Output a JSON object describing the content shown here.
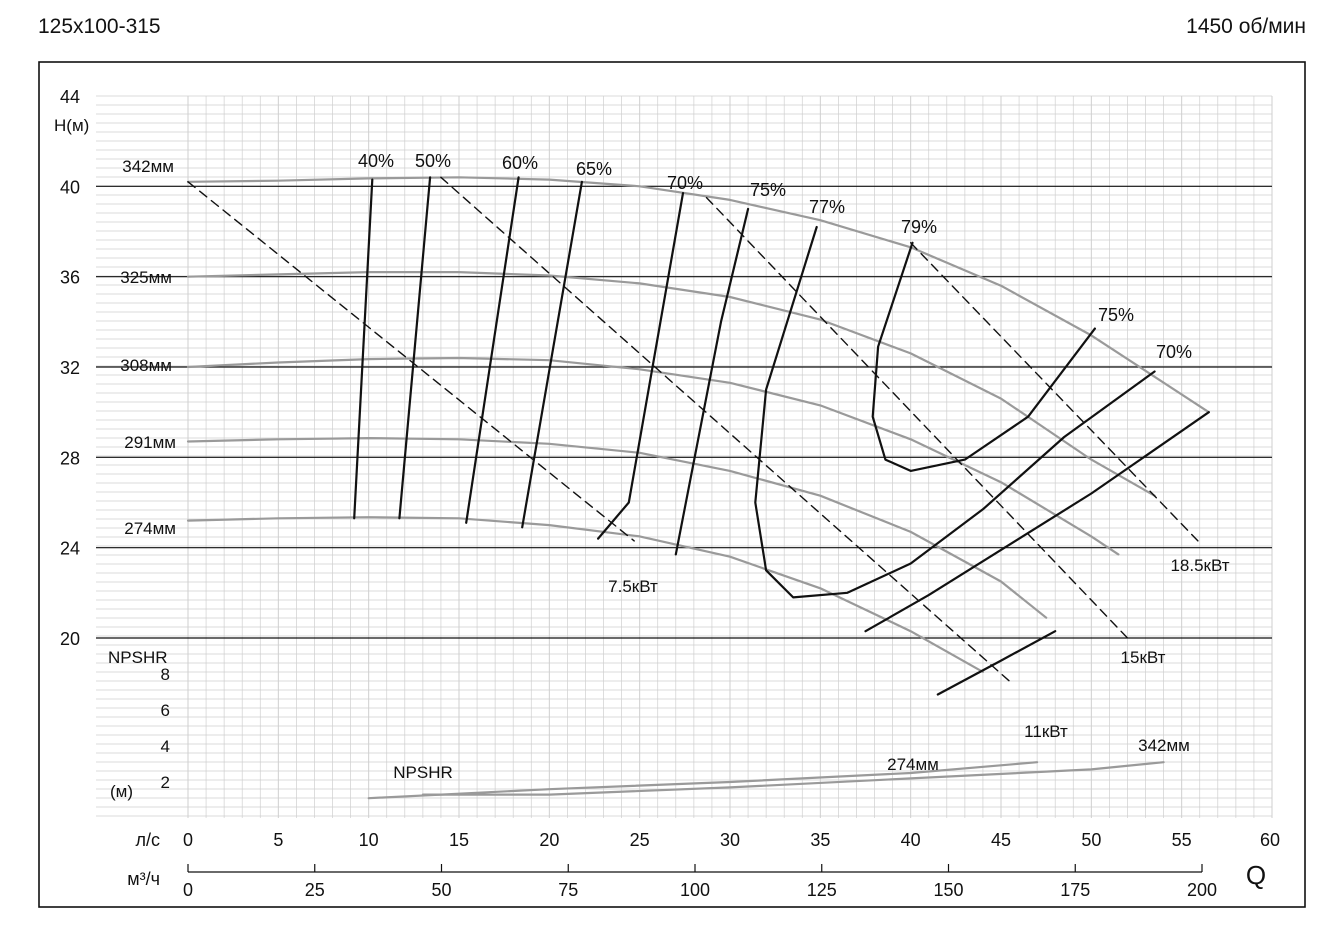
{
  "header": {
    "model": "125x100-315",
    "speed": "1450 об/мин"
  },
  "chart_data": {
    "type": "line",
    "x_unit_ls": "л/с",
    "x_unit_m3h": "м³/ч",
    "q_symbol": "Q",
    "ls_ticks": [
      0,
      5,
      10,
      15,
      20,
      25,
      30,
      35,
      40,
      45,
      50,
      55,
      60
    ],
    "m3h_ticks": [
      0,
      25,
      50,
      75,
      100,
      125,
      150,
      175,
      200
    ],
    "ylabel_head": "H(м)",
    "head_ticks": [
      20,
      24,
      28,
      32,
      36,
      40,
      44
    ],
    "head_range": [
      20,
      44
    ],
    "npshr_label": "NPSHR",
    "npshr_unit": "(м)",
    "npshr_ticks": [
      2,
      4,
      6,
      8
    ],
    "npshr_range": [
      0,
      10
    ],
    "head_curves": [
      {
        "name": "342мм",
        "points": [
          [
            0,
            40.2
          ],
          [
            5,
            40.25
          ],
          [
            10,
            40.35
          ],
          [
            15,
            40.4
          ],
          [
            20,
            40.3
          ],
          [
            25,
            40.0
          ],
          [
            30,
            39.4
          ],
          [
            35,
            38.5
          ],
          [
            40,
            37.3
          ],
          [
            45,
            35.6
          ],
          [
            50,
            33.4
          ],
          [
            56.5,
            30.0
          ]
        ]
      },
      {
        "name": "325мм",
        "points": [
          [
            0,
            36.0
          ],
          [
            5,
            36.1
          ],
          [
            10,
            36.2
          ],
          [
            15,
            36.2
          ],
          [
            20,
            36.05
          ],
          [
            25,
            35.7
          ],
          [
            30,
            35.1
          ],
          [
            35,
            34.1
          ],
          [
            40,
            32.6
          ],
          [
            45,
            30.6
          ],
          [
            50,
            27.9
          ],
          [
            53.5,
            26.3
          ]
        ]
      },
      {
        "name": "308мм",
        "points": [
          [
            0,
            32.0
          ],
          [
            5,
            32.2
          ],
          [
            10,
            32.35
          ],
          [
            15,
            32.4
          ],
          [
            20,
            32.3
          ],
          [
            25,
            31.9
          ],
          [
            30,
            31.3
          ],
          [
            35,
            30.3
          ],
          [
            40,
            28.8
          ],
          [
            45,
            26.9
          ],
          [
            50,
            24.5
          ],
          [
            51.5,
            23.7
          ]
        ]
      },
      {
        "name": "291мм",
        "points": [
          [
            0,
            28.7
          ],
          [
            5,
            28.8
          ],
          [
            10,
            28.85
          ],
          [
            15,
            28.8
          ],
          [
            20,
            28.6
          ],
          [
            25,
            28.2
          ],
          [
            30,
            27.4
          ],
          [
            35,
            26.3
          ],
          [
            40,
            24.7
          ],
          [
            45,
            22.5
          ],
          [
            47.5,
            20.9
          ]
        ]
      },
      {
        "name": "274мм",
        "points": [
          [
            0,
            25.2
          ],
          [
            5,
            25.3
          ],
          [
            10,
            25.35
          ],
          [
            15,
            25.3
          ],
          [
            20,
            25.0
          ],
          [
            25,
            24.5
          ],
          [
            30,
            23.6
          ],
          [
            35,
            22.2
          ],
          [
            40,
            20.3
          ],
          [
            44,
            18.5
          ]
        ]
      }
    ],
    "efficiency_lines": [
      {
        "name": "40%",
        "points": [
          [
            10.2,
            40.3
          ],
          [
            9.2,
            25.3
          ]
        ]
      },
      {
        "name": "50%",
        "points": [
          [
            13.4,
            40.4
          ],
          [
            11.7,
            25.3
          ]
        ]
      },
      {
        "name": "60%",
        "points": [
          [
            18.3,
            40.4
          ],
          [
            15.4,
            25.1
          ]
        ]
      },
      {
        "name": "65%",
        "points": [
          [
            21.8,
            40.2
          ],
          [
            18.5,
            24.9
          ]
        ]
      },
      {
        "name": "70%",
        "points": [
          [
            27.4,
            39.7
          ],
          [
            24.4,
            26.0
          ],
          [
            22.7,
            24.4
          ]
        ]
      },
      {
        "name": "75%",
        "points": [
          [
            31.0,
            39.0
          ],
          [
            29.5,
            34.0
          ],
          [
            27.0,
            23.7
          ]
        ]
      },
      {
        "name": "77%",
        "points": [
          [
            34.8,
            38.2
          ],
          [
            32.0,
            31.0
          ],
          [
            31.4,
            26.0
          ],
          [
            32.0,
            23.0
          ],
          [
            33.5,
            21.8
          ],
          [
            36.5,
            22.0
          ],
          [
            40.0,
            23.3
          ],
          [
            44.0,
            25.7
          ],
          [
            48.5,
            28.9
          ],
          [
            53.5,
            31.8
          ]
        ]
      },
      {
        "name": "79%",
        "points": [
          [
            40.1,
            37.5
          ],
          [
            38.2,
            32.9
          ],
          [
            37.9,
            29.8
          ],
          [
            38.6,
            27.9
          ],
          [
            40.0,
            27.4
          ],
          [
            43.0,
            27.9
          ],
          [
            46.5,
            29.8
          ],
          [
            50.2,
            33.7
          ]
        ]
      },
      {
        "name": "75%",
        "points": [
          [
            37.5,
            20.3
          ],
          [
            41.0,
            21.9
          ],
          [
            45.0,
            23.9
          ],
          [
            50.0,
            26.4
          ],
          [
            56.5,
            30.0
          ]
        ]
      },
      {
        "name": "70%",
        "points": [
          [
            41.5,
            17.5
          ],
          [
            45.0,
            19.0
          ],
          [
            48.0,
            20.3
          ]
        ]
      }
    ],
    "power_lines": [
      {
        "name": "7.5кВт",
        "points": [
          [
            0,
            40.2
          ],
          [
            24.7,
            24.3
          ]
        ]
      },
      {
        "name": "11кВт",
        "points": [
          [
            14.0,
            40.4
          ],
          [
            45.6,
            18.0
          ]
        ]
      },
      {
        "name": "15кВт",
        "points": [
          [
            28.7,
            39.5
          ],
          [
            52.0,
            20.0
          ]
        ]
      },
      {
        "name": "18.5кВт",
        "points": [
          [
            40.0,
            37.5
          ],
          [
            55.9,
            24.3
          ]
        ]
      }
    ],
    "npshr_curves": [
      {
        "name": "274мм",
        "points": [
          [
            10,
            1.1
          ],
          [
            20,
            1.6
          ],
          [
            30,
            2.0
          ],
          [
            40,
            2.5
          ],
          [
            47,
            3.1
          ]
        ]
      },
      {
        "name": "342мм",
        "points": [
          [
            13,
            1.3
          ],
          [
            20,
            1.3
          ],
          [
            30,
            1.7
          ],
          [
            40,
            2.2
          ],
          [
            50,
            2.7
          ],
          [
            54,
            3.1
          ]
        ]
      }
    ]
  }
}
